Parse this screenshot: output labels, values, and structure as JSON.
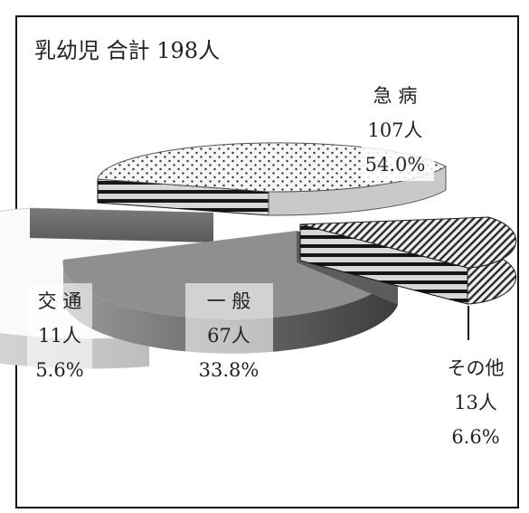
{
  "chart_data": {
    "type": "pie",
    "title": "乳幼児 合計 198人",
    "total": 198,
    "slices": [
      {
        "name": "急 病",
        "count_label": "107人",
        "percent_label": "54.0%",
        "value": 107,
        "percent": 54.0
      },
      {
        "name": "その他",
        "count_label": "13人",
        "percent_label": "6.6%",
        "value": 13,
        "percent": 6.6
      },
      {
        "name": "一 般",
        "count_label": "67人",
        "percent_label": "33.8%",
        "value": 67,
        "percent": 33.8
      },
      {
        "name": "交 通",
        "count_label": "11人",
        "percent_label": "5.6%",
        "value": 11,
        "percent": 5.6
      }
    ],
    "style": "3d-exploded-pie",
    "colors": {
      "kyubyo_top": "#f4f4f4",
      "kyubyo_dots": "#333333",
      "other_top": "#e8e8e8",
      "ippan_top": "#8f8f8f",
      "ippan_side": "#6e6e6e",
      "kotsu_top": "#fafafa",
      "kotsu_side": "#6a6a6a",
      "stripe_dark": "#1a1a1a",
      "stripe_light": "#dcdcdc"
    }
  }
}
